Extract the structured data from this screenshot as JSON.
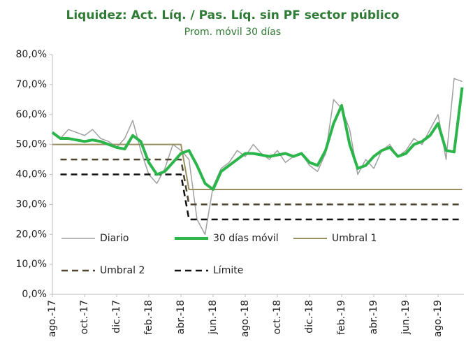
{
  "chart_data": {
    "type": "line",
    "title": "Liquidez: Act. Líq. / Pas. Líq. sin PF sector público",
    "subtitle": "Prom. móvil 30 días",
    "categories": [
      "ago.-17",
      null,
      null,
      null,
      "oct.-17",
      null,
      null,
      null,
      "dic.-17",
      null,
      null,
      null,
      "feb.-18",
      null,
      null,
      null,
      "abr.-18",
      null,
      null,
      null,
      "jun.-18",
      null,
      null,
      null,
      "ago.-18",
      null,
      null,
      null,
      "oct.-18",
      null,
      null,
      null,
      "dic.-18",
      null,
      null,
      null,
      "feb.-19",
      null,
      null,
      null,
      "abr.-19",
      null,
      null,
      null,
      "jun.-19",
      null,
      null,
      null,
      "ago.-19",
      null,
      null,
      null
    ],
    "series": [
      {
        "name": "Diario",
        "color": "#a0a0a0",
        "width": 1.5,
        "dash": false,
        "values": [
          54,
          52,
          55,
          54,
          53,
          55,
          52,
          51,
          49,
          52,
          58,
          48,
          40,
          37,
          42,
          50,
          48,
          45,
          25,
          20,
          36,
          42,
          44,
          48,
          46,
          50,
          47,
          45,
          48,
          44,
          46,
          47,
          43,
          41,
          47,
          65,
          62,
          55,
          40,
          45,
          42,
          48,
          50,
          46,
          48,
          52,
          50,
          55,
          60,
          45,
          72,
          71
        ]
      },
      {
        "name": "30 días móvil",
        "color": "#2bb54a",
        "width": 4,
        "dash": false,
        "values": [
          54,
          52,
          52,
          51.5,
          51,
          51.5,
          51,
          50,
          49,
          48.5,
          53,
          51,
          44,
          40,
          41,
          44,
          47,
          48,
          43,
          37,
          35,
          41,
          43,
          45,
          47,
          47,
          46.5,
          46,
          46.5,
          47,
          46,
          47,
          44,
          43,
          48,
          57,
          63,
          50,
          42,
          43,
          46,
          48,
          49,
          46,
          47,
          50,
          51,
          53,
          57,
          48,
          47.5,
          69
        ]
      },
      {
        "name": "Umbral 1",
        "color": "#9a8f5f",
        "width": 2,
        "dash": false,
        "values": [
          50,
          50,
          50,
          50,
          50,
          50,
          50,
          50,
          50,
          50,
          50,
          50,
          50,
          50,
          50,
          50,
          50,
          35,
          35,
          35,
          35,
          35,
          35,
          35,
          35,
          35,
          35,
          35,
          35,
          35,
          35,
          35,
          35,
          35,
          35,
          35,
          35,
          35,
          35,
          35,
          35,
          35,
          35,
          35,
          35,
          35,
          35,
          35,
          35,
          35,
          35,
          35
        ]
      },
      {
        "name": "Umbral 2",
        "color": "#4d4530",
        "width": 2.5,
        "dash": true,
        "values": [
          null,
          45,
          45,
          45,
          45,
          45,
          45,
          45,
          45,
          45,
          45,
          45,
          45,
          45,
          45,
          45,
          45,
          30,
          30,
          30,
          30,
          30,
          30,
          30,
          30,
          30,
          30,
          30,
          30,
          30,
          30,
          30,
          30,
          30,
          30,
          30,
          30,
          30,
          30,
          30,
          30,
          30,
          30,
          30,
          30,
          30,
          30,
          30,
          30,
          30,
          30,
          30
        ]
      },
      {
        "name": "Límite",
        "color": "#111111",
        "width": 2.5,
        "dash": true,
        "values": [
          null,
          40,
          40,
          40,
          40,
          40,
          40,
          40,
          40,
          40,
          40,
          40,
          40,
          40,
          40,
          40,
          40,
          25,
          25,
          25,
          25,
          25,
          25,
          25,
          25,
          25,
          25,
          25,
          25,
          25,
          25,
          25,
          25,
          25,
          25,
          25,
          25,
          25,
          25,
          25,
          25,
          25,
          25,
          25,
          25,
          25,
          25,
          25,
          25,
          25,
          25,
          25
        ]
      }
    ],
    "ylim": [
      0,
      80
    ],
    "yticks": [
      {
        "value": 0,
        "label": "0,0%"
      },
      {
        "value": 10,
        "label": "10,0%"
      },
      {
        "value": 20,
        "label": "20,0%"
      },
      {
        "value": 30,
        "label": "30,0%"
      },
      {
        "value": 40,
        "label": "40,0%"
      },
      {
        "value": 50,
        "label": "50,0%"
      },
      {
        "value": 60,
        "label": "60,0%"
      },
      {
        "value": 70,
        "label": "70,0%"
      },
      {
        "value": 80,
        "label": "80,0%"
      }
    ],
    "grid": false
  }
}
